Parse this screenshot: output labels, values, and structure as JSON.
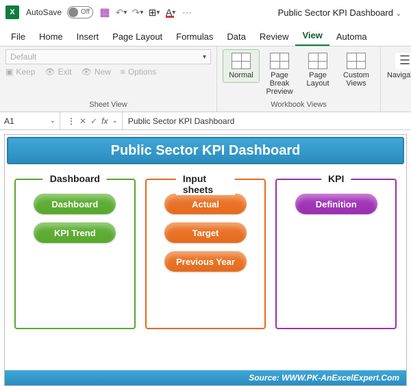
{
  "titlebar": {
    "autosave_label": "AutoSave",
    "autosave_state": "Off",
    "doc_title": "Public Sector KPI Dashboard"
  },
  "tabs": [
    "File",
    "Home",
    "Insert",
    "Page Layout",
    "Formulas",
    "Data",
    "Review",
    "View",
    "Automa"
  ],
  "active_tab": "View",
  "ribbon": {
    "sheetview": {
      "combo_placeholder": "Default",
      "buttons": [
        "Keep",
        "Exit",
        "New",
        "Options"
      ],
      "group_label": "Sheet View"
    },
    "workbook_views": {
      "group_label": "Workbook Views",
      "items": [
        {
          "label": "Normal",
          "active": true
        },
        {
          "label": "Page Break Preview",
          "active": false
        },
        {
          "label": "Page Layout",
          "active": false
        },
        {
          "label": "Custom Views",
          "active": false
        }
      ],
      "navigation_label": "Navigation"
    }
  },
  "formula_bar": {
    "cell_ref": "A1",
    "fx_label": "fx",
    "value": "Public Sector KPI Dashboard"
  },
  "dashboard": {
    "header": "Public Sector KPI Dashboard",
    "header_bg_from": "#3fa7d6",
    "header_bg_to": "#2c8cc0",
    "sections": [
      {
        "title": "Dashboard",
        "border_color": "#5aa72f",
        "pill_color": "#63b43b",
        "items": [
          "Dashboard",
          "KPI Trend"
        ]
      },
      {
        "title": "Input sheets",
        "border_color": "#e46b1f",
        "pill_color": "#ed7b2f",
        "items": [
          "Actual",
          "Target",
          "Previous Year"
        ]
      },
      {
        "title": "KPI",
        "border_color": "#9b2fae",
        "pill_color": "#a93fbf",
        "items": [
          "Definition"
        ]
      }
    ],
    "source": "Source: WWW.PK-AnExcelExpert.Com"
  }
}
